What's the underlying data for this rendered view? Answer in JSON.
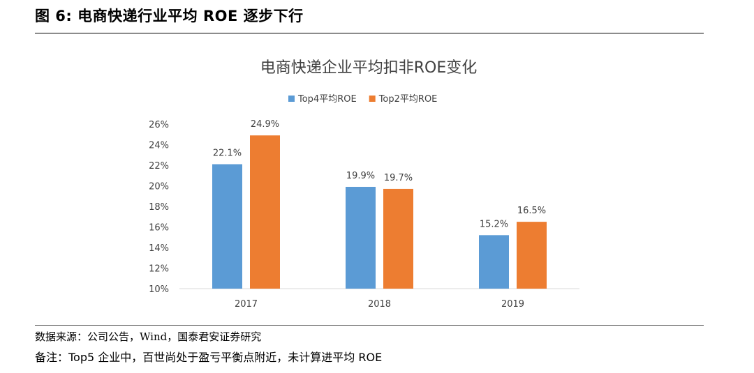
{
  "header": {
    "figure_title": "图 6:  电商快递行业平均 ROE 逐步下行"
  },
  "footer": {
    "source": "数据来源：公司公告，Wind，国泰君安证券研究",
    "remark": "备注：Top5 企业中，百世尚处于盈亏平衡点附近，未计算进平均 ROE"
  },
  "chart_data": {
    "type": "bar",
    "title": "电商快递企业平均扣非ROE变化",
    "categories": [
      "2017",
      "2018",
      "2019"
    ],
    "series": [
      {
        "name": "Top4平均ROE",
        "values": [
          22.1,
          19.9,
          15.2
        ],
        "labels": [
          "22.1%",
          "19.9%",
          "15.2%"
        ],
        "color": "#5B9BD5"
      },
      {
        "name": "Top2平均ROE",
        "values": [
          24.9,
          19.7,
          16.5
        ],
        "labels": [
          "24.9%",
          "19.7%",
          "16.5%"
        ],
        "color": "#ED7D31"
      }
    ],
    "ylim": [
      10,
      26
    ],
    "yticks": [
      10,
      12,
      14,
      16,
      18,
      20,
      22,
      24,
      26
    ],
    "ytick_labels": [
      "10%",
      "12%",
      "14%",
      "16%",
      "18%",
      "20%",
      "22%",
      "24%",
      "26%"
    ],
    "legend_position": "top",
    "grid": false
  }
}
